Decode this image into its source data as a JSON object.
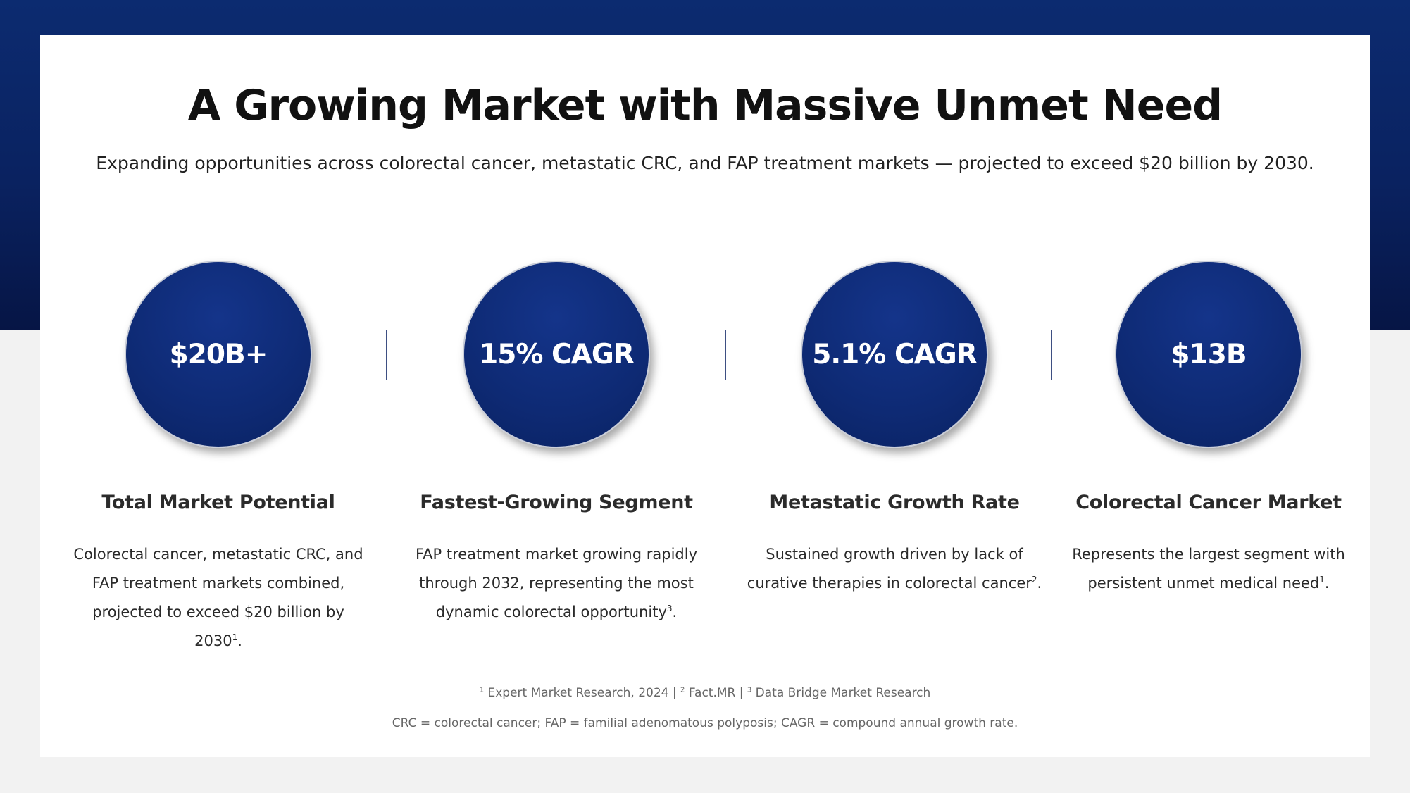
{
  "header": {
    "title": "A Growing Market with Massive Unmet Need",
    "subtitle": "Expanding opportunities across colorectal cancer, metastatic CRC, and FAP treatment markets — projected to exceed $20 billion by 2030."
  },
  "stats": [
    {
      "value": "$20B+",
      "heading": "Total Market Potential",
      "body": "Colorectal cancer, metastatic CRC, and FAP treatment markets combined, projected to exceed $20 billion by 2030",
      "ref": "1",
      "trail": "."
    },
    {
      "value": "15% CAGR",
      "heading": "Fastest-Growing Segment",
      "body": "FAP treatment market growing rapidly through 2032, representing the most dynamic colorectal opportunity",
      "ref": "3",
      "trail": "."
    },
    {
      "value": "5.1% CAGR",
      "heading": "Metastatic Growth Rate",
      "body": "Sustained growth driven by lack of curative therapies in colorectal cancer",
      "ref": "2",
      "trail": "."
    },
    {
      "value": "$13B",
      "heading": "Colorectal Cancer Market",
      "body": "Represents the largest segment with persistent unmet medical need",
      "ref": "1",
      "trail": "."
    }
  ],
  "footer": {
    "sources": [
      {
        "ref": "1",
        "text": "Expert Market Research, 2024"
      },
      {
        "ref": "2",
        "text": "Fact.MR"
      },
      {
        "ref": "3",
        "text": "Data Bridge Market Research"
      }
    ],
    "separator": " | ",
    "abbreviations": "CRC = colorectal cancer; FAP = familial adenomatous polyposis; CAGR = compound annual growth rate."
  },
  "colors": {
    "brand_navy": "#0c2b70",
    "circle_fill": "#0e2a74",
    "background": "#f2f2f2",
    "card": "#ffffff"
  }
}
